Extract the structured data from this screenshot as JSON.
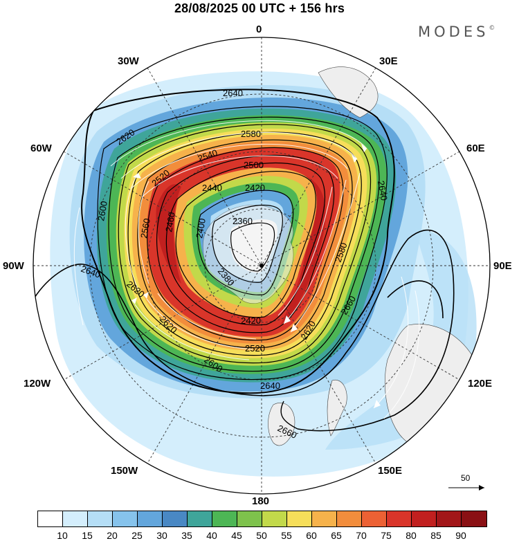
{
  "title": "28/08/2025  00 UTC  + 156 hrs",
  "brand": {
    "name": "MODES",
    "mark": "©"
  },
  "longitude_labels": {
    "north": "0",
    "south": "180",
    "west": "90W",
    "east": "90E",
    "w30": "30W",
    "e30": "30E",
    "w60": "60W",
    "e60": "60E",
    "w120": "120W",
    "e120": "120E",
    "w150": "150W",
    "e150": "150E"
  },
  "contour_labels": {
    "c2640a": "2640",
    "c2620a": "2620",
    "c2580": "2580",
    "c2540": "2540",
    "c2500": "2500",
    "c2520": "2520",
    "c2440": "2440",
    "c2420a": "2420",
    "c2600a": "2600",
    "c2560a": "2560",
    "c2460": "2460",
    "c2400": "2400",
    "c2360": "2360",
    "c2380": "2380",
    "c2640b": "2640",
    "c2640c": "2640",
    "c2640d": "2640",
    "c2620b": "2620",
    "c2620c": "2620",
    "c2620d": "2620",
    "c2580b": "2580",
    "c2660a": "2660",
    "c2660b": "2660",
    "c2600b": "2600",
    "c2420b": "2420",
    "c2560b": "2560",
    "c2540b": "2540",
    "c2480": "2480"
  },
  "vector_scale": "50",
  "colorbar": {
    "colors": [
      "#ffffff",
      "#d4eefc",
      "#b5def6",
      "#86c3ec",
      "#63a6dc",
      "#4988c4",
      "#3fa59a",
      "#4db655",
      "#7ec24c",
      "#c2d94a",
      "#f6de5a",
      "#f6b24b",
      "#f28d3c",
      "#ec6134",
      "#d9352a",
      "#c1201f",
      "#a21619",
      "#8a1014"
    ],
    "ticks": [
      "10",
      "15",
      "20",
      "25",
      "30",
      "35",
      "40",
      "45",
      "50",
      "55",
      "60",
      "65",
      "70",
      "75",
      "80",
      "85",
      "90"
    ]
  }
}
